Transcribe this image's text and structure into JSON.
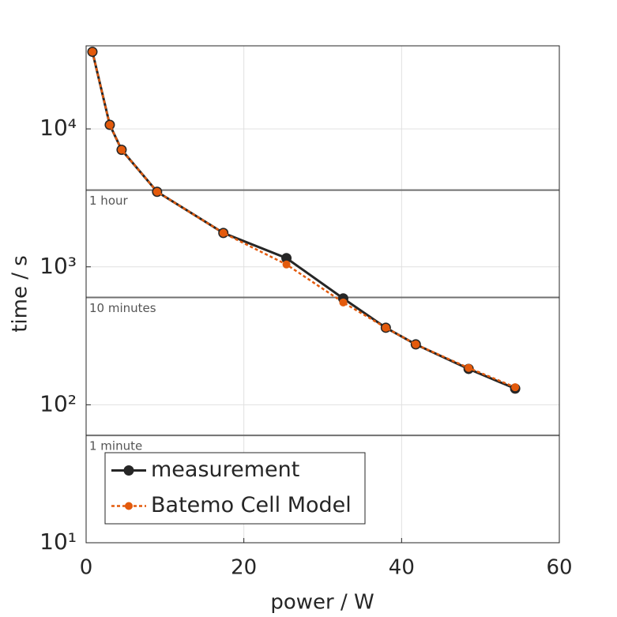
{
  "chart_data": {
    "type": "line",
    "x_label": "power / W",
    "y_label": "time / s",
    "xlim": [
      0,
      60
    ],
    "xticks": [
      0,
      20,
      40,
      60
    ],
    "ylim": [
      10,
      40000
    ],
    "y_scale": "log",
    "yticks": [
      {
        "value": 10,
        "label": "10¹"
      },
      {
        "value": 100,
        "label": "10²"
      },
      {
        "value": 1000,
        "label": "10³"
      },
      {
        "value": 10000,
        "label": "10⁴"
      }
    ],
    "grid": true,
    "legend": "lower left",
    "reference_lines": [
      {
        "value": 3600,
        "label": "1 hour"
      },
      {
        "value": 600,
        "label": "10 minutes"
      },
      {
        "value": 60,
        "label": "1 minute"
      }
    ],
    "series": [
      {
        "name": "measurement",
        "color": "#262626",
        "dash": false,
        "x": [
          0.8,
          3.0,
          4.5,
          9.0,
          17.4,
          25.4,
          32.6,
          38.0,
          41.8,
          48.5,
          54.4
        ],
        "values": [
          36200,
          10700,
          7050,
          3500,
          1760,
          1156,
          590,
          362,
          274,
          182,
          131
        ]
      },
      {
        "name": "Batemo Cell Model",
        "color": "#e35a0c",
        "dash": true,
        "x": [
          0.8,
          3.0,
          4.5,
          9.0,
          17.4,
          25.4,
          32.6,
          38.0,
          41.8,
          48.5,
          54.4
        ],
        "values": [
          36200,
          10700,
          7050,
          3500,
          1760,
          1040,
          552,
          362,
          274,
          185,
          134
        ]
      }
    ]
  }
}
